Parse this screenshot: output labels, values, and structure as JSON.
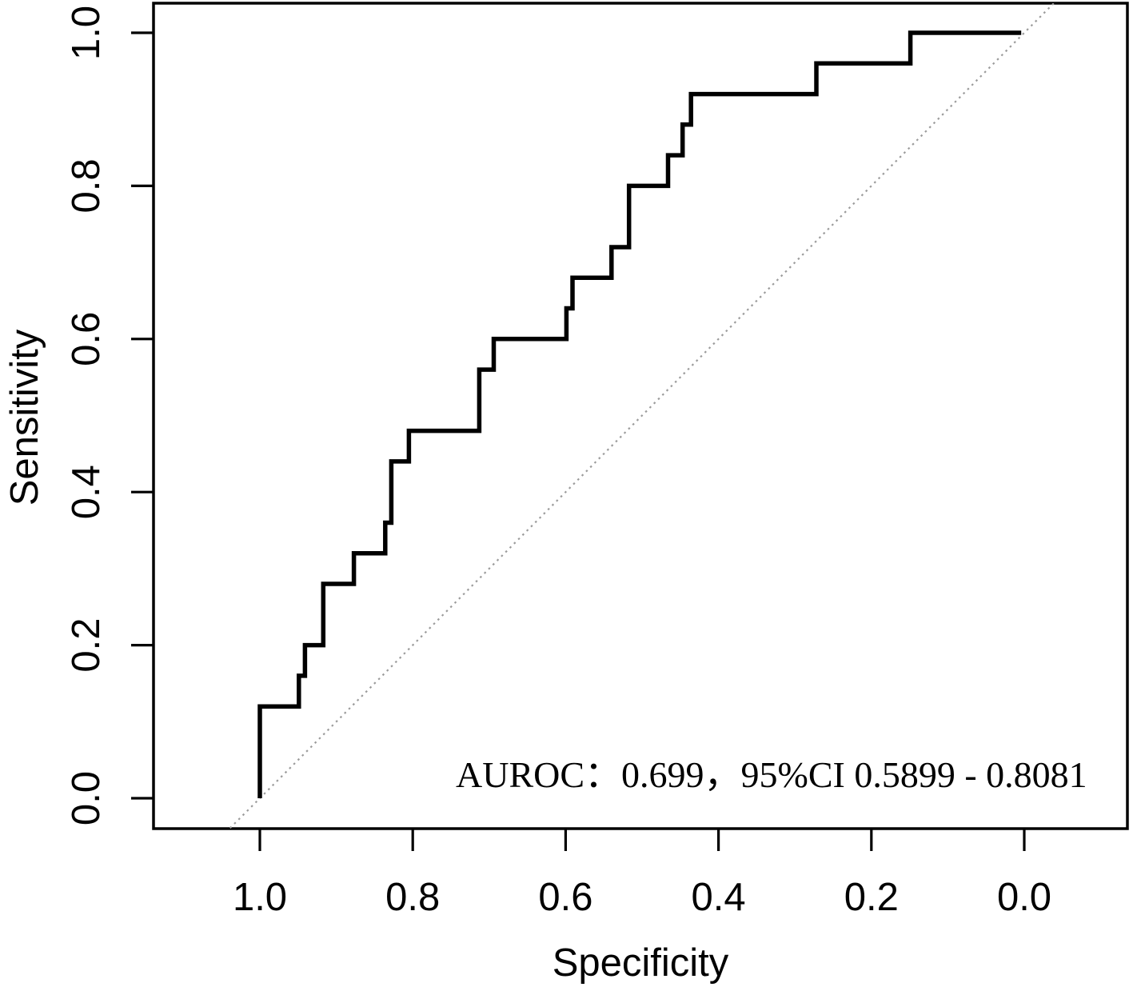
{
  "figure": {
    "background_color": "#ffffff",
    "foreground_color": "#000000"
  },
  "chart_data": {
    "type": "line",
    "subtype": "roc_step_curve",
    "title": "",
    "xlabel": "Specificity",
    "ylabel": "Sensitivity",
    "xlim": [
      1.0,
      0.0
    ],
    "ylim": [
      0.0,
      1.0
    ],
    "x_axis_reversed": true,
    "grid": false,
    "legend": null,
    "x_tick_labels": [
      "1.0",
      "0.8",
      "0.6",
      "0.4",
      "0.2",
      "0.0"
    ],
    "x_tick_values": [
      1.0,
      0.8,
      0.6,
      0.4,
      0.2,
      0.0
    ],
    "y_tick_labels": [
      "0.0",
      "0.2",
      "0.4",
      "0.6",
      "0.8",
      "1.0"
    ],
    "y_tick_values": [
      0.0,
      0.2,
      0.4,
      0.6,
      0.8,
      1.0
    ],
    "annotation": {
      "text": "AUROC：0.699，95%CI 0.5899 - 0.8081",
      "auroc": 0.699,
      "ci_lower": 0.5899,
      "ci_upper": 0.8081
    },
    "reference_line": {
      "name": "chance-diagonal",
      "style": "dotted",
      "color": "#9b9b9b",
      "from": [
        1.0,
        0.0
      ],
      "to": [
        0.0,
        1.0
      ]
    },
    "series": [
      {
        "name": "ROC curve",
        "color": "#000000",
        "line_width": 5.5,
        "points_spec_sens": [
          [
            1.0,
            0.0
          ],
          [
            1.0,
            0.12
          ],
          [
            0.949,
            0.12
          ],
          [
            0.949,
            0.16
          ],
          [
            0.941,
            0.16
          ],
          [
            0.941,
            0.2
          ],
          [
            0.917,
            0.2
          ],
          [
            0.917,
            0.28
          ],
          [
            0.877,
            0.28
          ],
          [
            0.877,
            0.32
          ],
          [
            0.836,
            0.32
          ],
          [
            0.836,
            0.36
          ],
          [
            0.828,
            0.36
          ],
          [
            0.828,
            0.44
          ],
          [
            0.805,
            0.44
          ],
          [
            0.805,
            0.48
          ],
          [
            0.713,
            0.48
          ],
          [
            0.713,
            0.56
          ],
          [
            0.694,
            0.56
          ],
          [
            0.694,
            0.6
          ],
          [
            0.599,
            0.6
          ],
          [
            0.599,
            0.64
          ],
          [
            0.591,
            0.64
          ],
          [
            0.591,
            0.68
          ],
          [
            0.54,
            0.68
          ],
          [
            0.54,
            0.72
          ],
          [
            0.517,
            0.72
          ],
          [
            0.517,
            0.8
          ],
          [
            0.466,
            0.8
          ],
          [
            0.466,
            0.84
          ],
          [
            0.447,
            0.84
          ],
          [
            0.447,
            0.88
          ],
          [
            0.436,
            0.88
          ],
          [
            0.436,
            0.92
          ],
          [
            0.272,
            0.92
          ],
          [
            0.272,
            0.96
          ],
          [
            0.149,
            0.96
          ],
          [
            0.149,
            1.0
          ],
          [
            0.004,
            1.0
          ]
        ]
      }
    ]
  }
}
